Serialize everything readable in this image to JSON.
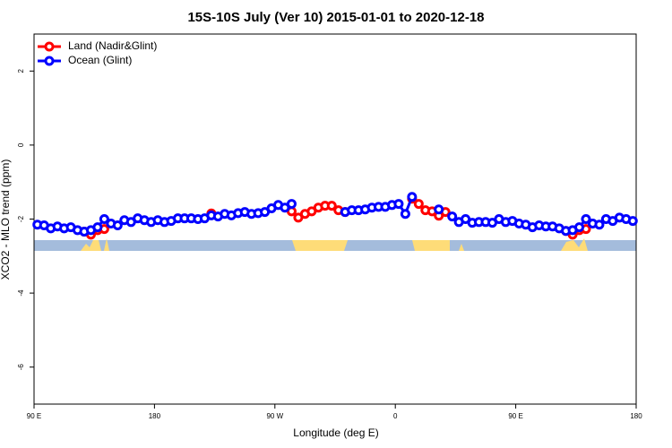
{
  "chart_data": {
    "type": "line",
    "title": "15S-10S July (Ver 10)   2015-01-01 to 2020-12-18",
    "x_label": "Longitude (deg E)",
    "y_label": "XCO2 - MLO trend (ppm)",
    "x": [
      92.5,
      97.5,
      102.5,
      107.5,
      112.5,
      117.5,
      122.5,
      127.5,
      132.5,
      137.5,
      142.5,
      147.5,
      152.5,
      157.5,
      162.5,
      167.5,
      172.5,
      177.5,
      182.5,
      187.5,
      192.5,
      197.5,
      202.5,
      207.5,
      212.5,
      217.5,
      222.5,
      227.5,
      232.5,
      237.5,
      242.5,
      247.5,
      252.5,
      257.5,
      262.5,
      267.5,
      272.5,
      277.5,
      282.5,
      287.5,
      292.5,
      297.5,
      302.5,
      307.5,
      312.5,
      317.5,
      322.5,
      327.5,
      332.5,
      337.5,
      342.5,
      347.5,
      352.5,
      357.5,
      362.5,
      367.5,
      372.5,
      377.5,
      382.5,
      387.5,
      392.5,
      397.5,
      402.5,
      407.5,
      412.5,
      417.5,
      422.5,
      427.5,
      432.5,
      437.5,
      442.5,
      447.5,
      452.5,
      457.5,
      462.5,
      467.5,
      472.5,
      477.5,
      482.5,
      487.5,
      492.5,
      497.5,
      502.5,
      507.5,
      512.5,
      517.5,
      522.5,
      527.5,
      532.5,
      537.5
    ],
    "series": [
      {
        "name": "Land (Nadir&Glint)",
        "color": "#ff0000",
        "values": [
          null,
          null,
          null,
          null,
          null,
          null,
          null,
          -2.34,
          -2.42,
          -2.3,
          -2.27,
          null,
          null,
          null,
          null,
          null,
          null,
          null,
          null,
          null,
          null,
          null,
          null,
          null,
          null,
          null,
          -1.85,
          null,
          null,
          null,
          null,
          null,
          null,
          null,
          null,
          null,
          null,
          null,
          -1.79,
          -1.96,
          -1.86,
          -1.79,
          -1.69,
          -1.64,
          -1.64,
          -1.76,
          -1.81,
          null,
          null,
          null,
          null,
          null,
          null,
          null,
          null,
          null,
          -1.45,
          -1.59,
          -1.76,
          -1.79,
          -1.91,
          -1.81,
          null,
          null,
          null,
          null,
          null,
          null,
          null,
          null,
          null,
          null,
          null,
          null,
          null,
          null,
          null,
          null,
          null,
          -2.32,
          -2.42,
          -2.3,
          -2.27,
          null,
          null,
          null,
          null,
          null,
          null,
          null
        ]
      },
      {
        "name": "Ocean (Glint)",
        "color": "#0000ff",
        "values": [
          -2.15,
          -2.17,
          -2.25,
          -2.2,
          -2.25,
          -2.22,
          -2.3,
          -2.34,
          -2.3,
          -2.22,
          -2.0,
          -2.12,
          -2.17,
          -2.03,
          -2.08,
          -1.98,
          -2.03,
          -2.08,
          -2.03,
          -2.08,
          -2.05,
          -1.98,
          -1.98,
          -1.98,
          -2.0,
          -1.98,
          -1.9,
          -1.93,
          -1.86,
          -1.9,
          -1.84,
          -1.81,
          -1.86,
          -1.84,
          -1.81,
          -1.71,
          -1.62,
          -1.69,
          -1.59,
          null,
          null,
          null,
          null,
          null,
          null,
          null,
          -1.81,
          -1.76,
          -1.76,
          -1.74,
          -1.69,
          -1.67,
          -1.67,
          -1.62,
          -1.59,
          -1.86,
          -1.4,
          null,
          null,
          null,
          -1.74,
          null,
          -1.93,
          -2.08,
          -2.0,
          -2.1,
          -2.08,
          -2.08,
          -2.1,
          -2.0,
          -2.08,
          -2.05,
          -2.12,
          -2.15,
          -2.22,
          -2.17,
          -2.2,
          -2.2,
          -2.25,
          -2.32,
          -2.3,
          -2.22,
          -2.0,
          -2.12,
          -2.15,
          -2.0,
          -2.05,
          -1.96,
          -2.0,
          -2.05
        ]
      }
    ],
    "xlim": [
      90,
      540
    ],
    "xticks": [
      {
        "value": 90,
        "label": "90 E"
      },
      180,
      {
        "value": 270,
        "label": "90 W"
      },
      {
        "value": 360,
        "label": "0"
      },
      {
        "value": 450,
        "label": "90 E"
      },
      {
        "value": 540,
        "label": "180"
      }
    ],
    "ylim": [
      -7,
      3
    ],
    "yticks": [
      -6,
      -4,
      -2,
      0,
      2
    ],
    "legend": "topleft"
  }
}
